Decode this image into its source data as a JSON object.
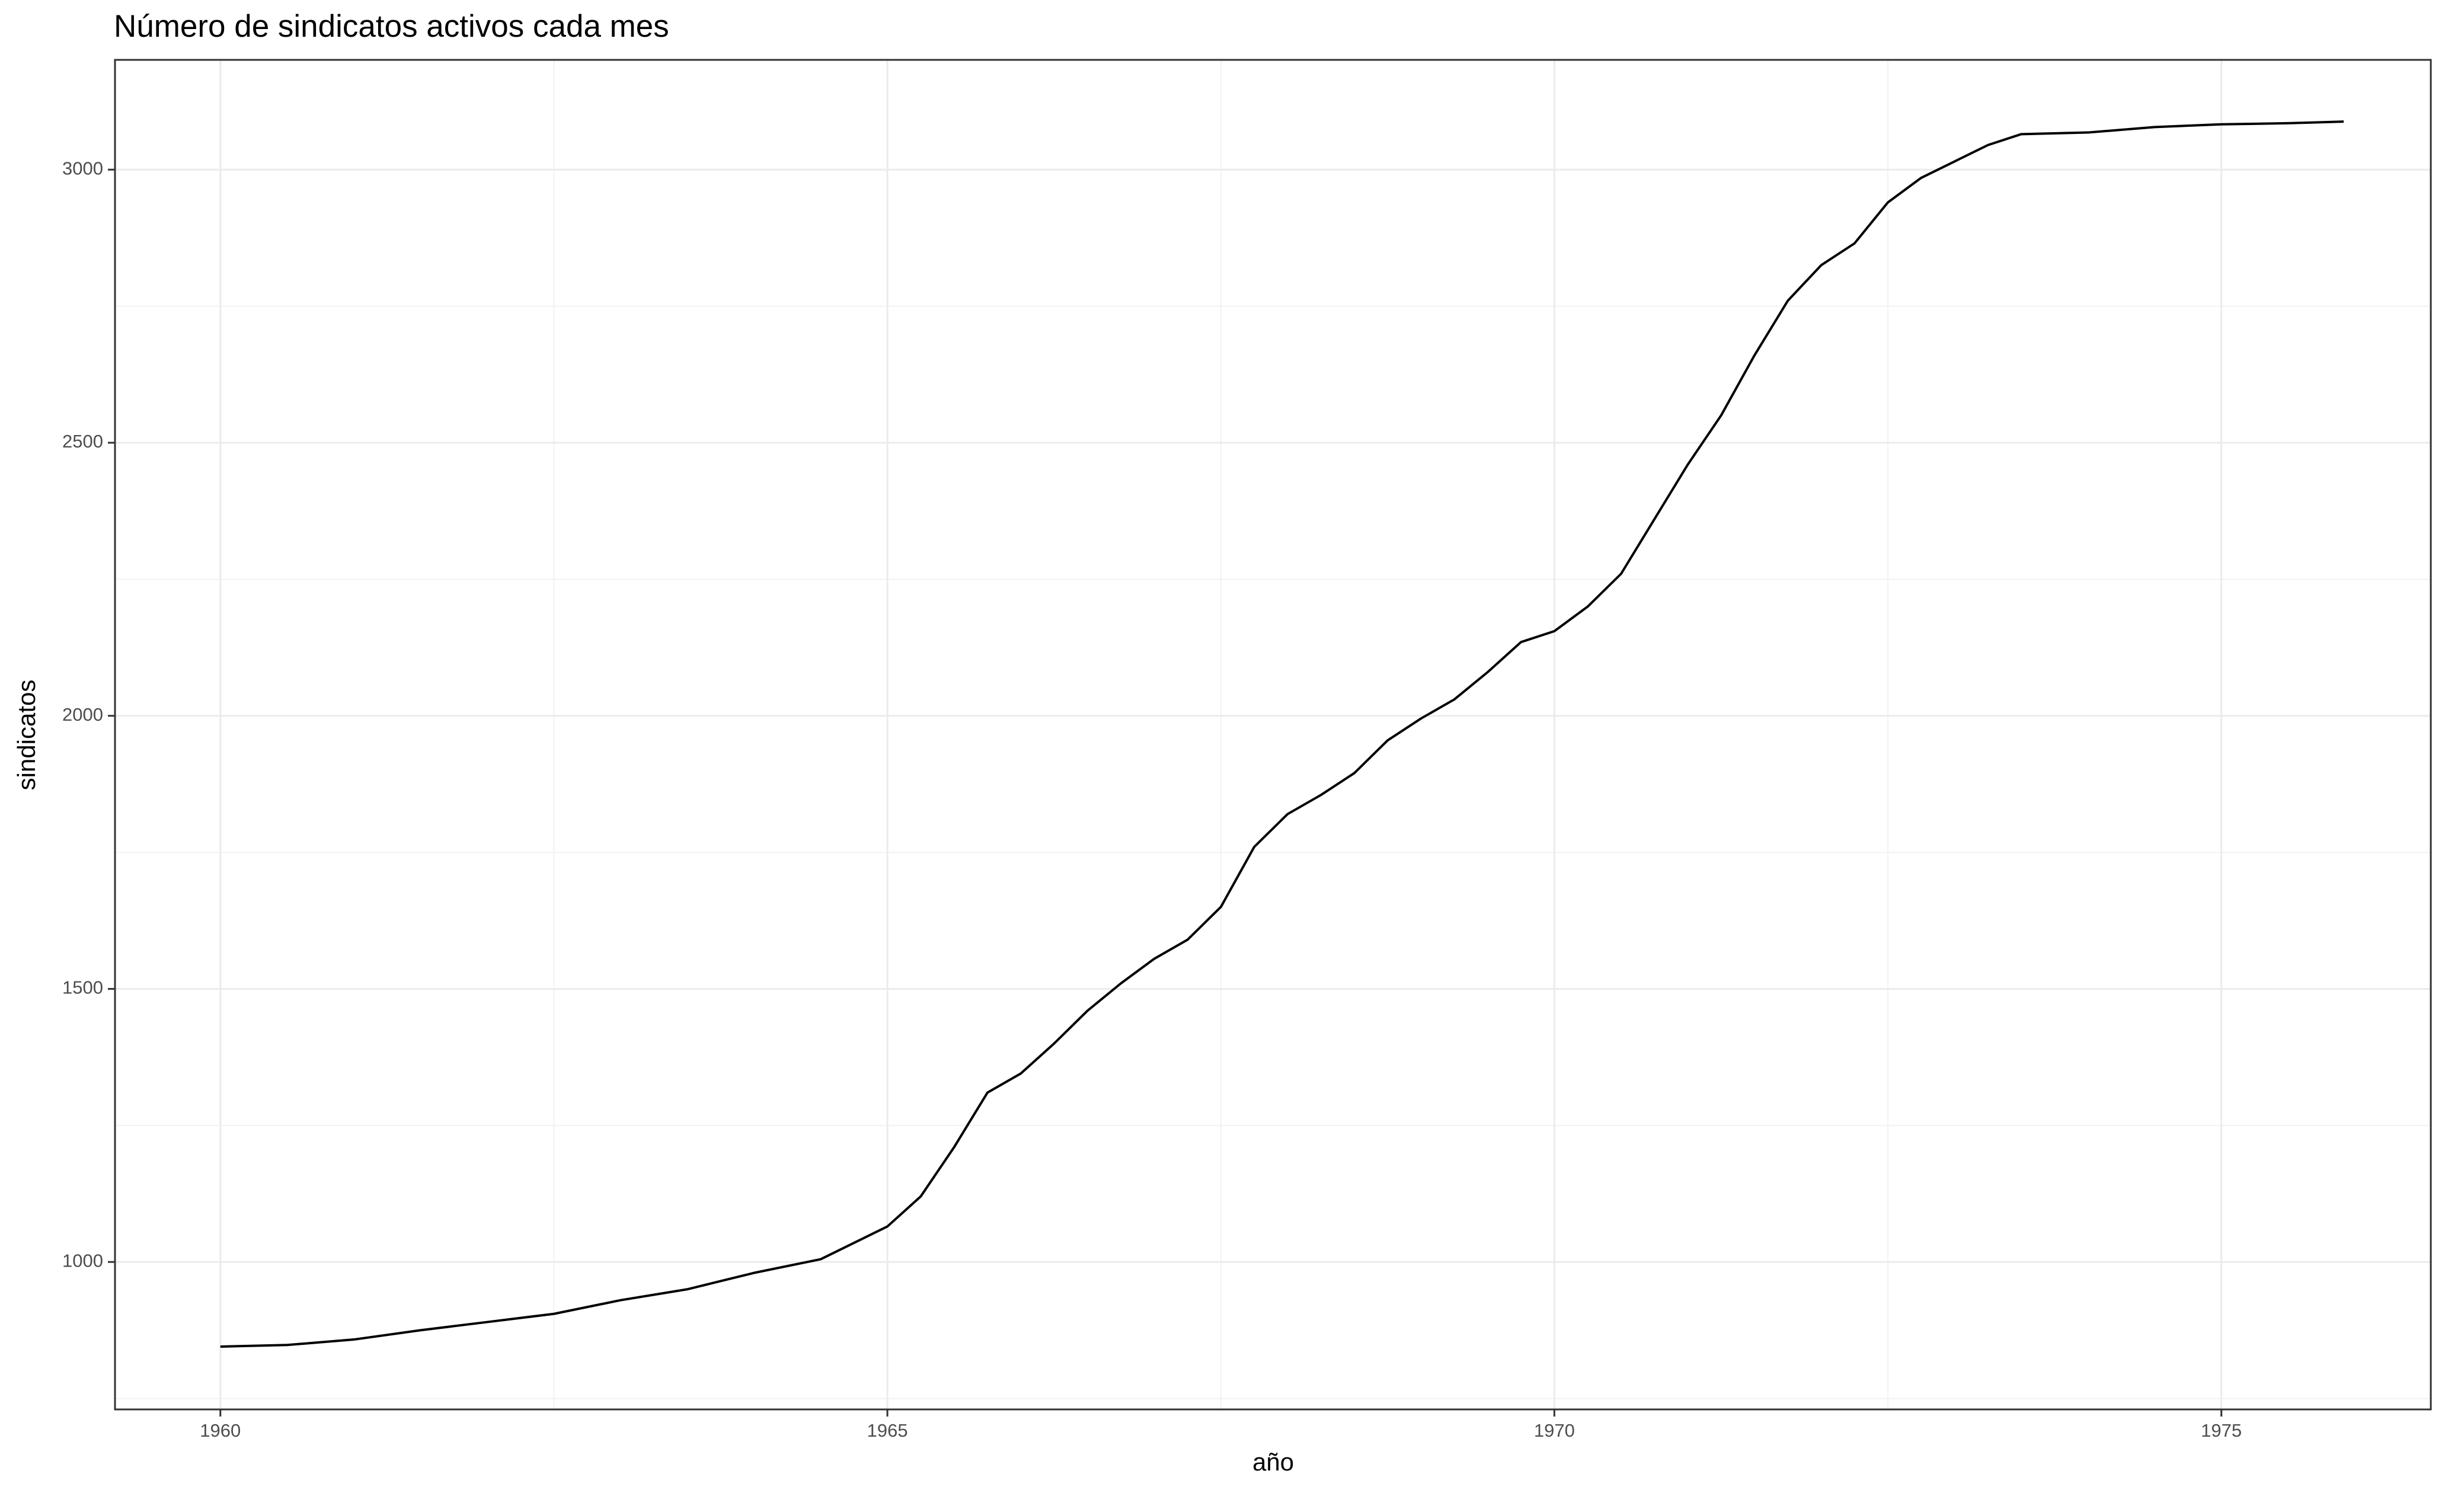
{
  "chart_data": {
    "type": "line",
    "title": "Número de sindicatos activos cada mes",
    "x_label": "año",
    "y_label": "sindicatos",
    "color": "#000000",
    "grid": true,
    "xlim": [
      1959.21,
      1976.57
    ],
    "ylim": [
      730,
      3201
    ],
    "xticks": [
      1960,
      1965,
      1970,
      1975
    ],
    "yticks": [
      1000,
      1500,
      2000,
      2500,
      3000
    ],
    "x": [
      1960.0,
      1960.5,
      1961.0,
      1961.5,
      1962.0,
      1962.5,
      1963.0,
      1963.5,
      1964.0,
      1964.5,
      1965.0,
      1965.25,
      1965.5,
      1965.75,
      1966.0,
      1966.25,
      1966.5,
      1966.75,
      1967.0,
      1967.25,
      1967.5,
      1967.75,
      1968.0,
      1968.25,
      1968.5,
      1968.75,
      1969.0,
      1969.25,
      1969.5,
      1969.75,
      1970.0,
      1970.25,
      1970.5,
      1970.75,
      1971.0,
      1971.25,
      1971.5,
      1971.75,
      1972.0,
      1972.25,
      1972.5,
      1972.75,
      1973.0,
      1973.25,
      1973.5,
      1974.0,
      1974.5,
      1975.0,
      1975.5,
      1975.917
    ],
    "values": [
      845,
      848,
      858,
      875,
      890,
      905,
      930,
      950,
      980,
      1005,
      1065,
      1120,
      1210,
      1310,
      1345,
      1400,
      1460,
      1510,
      1555,
      1590,
      1650,
      1760,
      1820,
      1855,
      1895,
      1955,
      1995,
      2030,
      2080,
      2135,
      2155,
      2200,
      2260,
      2360,
      2460,
      2550,
      2660,
      2760,
      2825,
      2865,
      2940,
      2985,
      3015,
      3045,
      3065,
      3068,
      3078,
      3083,
      3085,
      3088
    ]
  }
}
